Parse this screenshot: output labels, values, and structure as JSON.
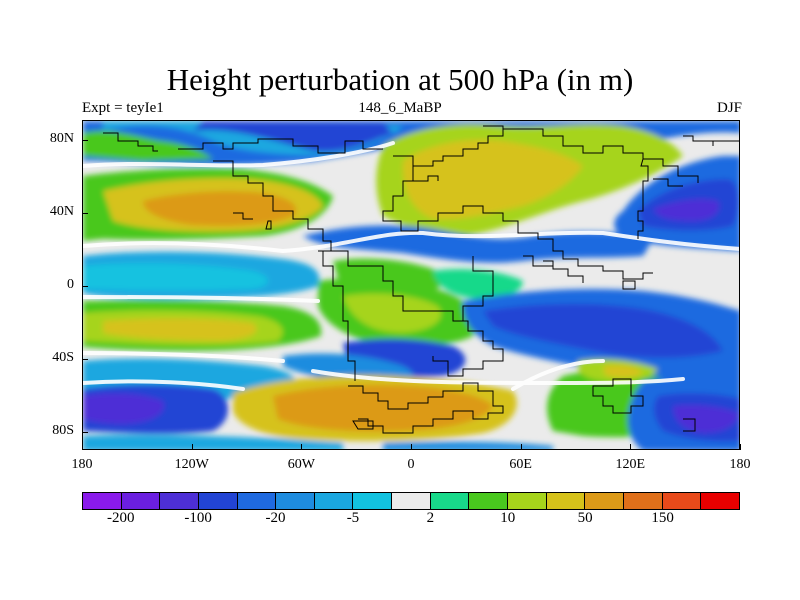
{
  "title": "Height perturbation at 500 hPa (in m)",
  "subtitle_left": "Expt = teyIe1",
  "subtitle_center": "148_6_MaBP",
  "subtitle_right": "DJF",
  "lat_labels": [
    "80N",
    "40N",
    "0",
    "40S",
    "80S"
  ],
  "lon_labels": [
    "180",
    "120W",
    "60W",
    "0",
    "60E",
    "120E",
    "180"
  ],
  "colorbar": {
    "colors": [
      "#8a1aeb",
      "#6b1fe0",
      "#4d2fd6",
      "#2244d4",
      "#1f6ae0",
      "#1e8cdf",
      "#1aa7e0",
      "#12c2e0",
      "#ebebeb",
      "#18d98a",
      "#49c81e",
      "#a6d41b",
      "#d6c21a",
      "#dc9a18",
      "#e0701a",
      "#e84a1a",
      "#e80000"
    ],
    "labels": [
      "-200",
      "-100",
      "-20",
      "-5",
      "2",
      "10",
      "50",
      "150"
    ]
  },
  "colors": {
    "purple": "#4d2fd6",
    "blue_dark": "#2244d4",
    "blue": "#1f6ae0",
    "blue_light": "#1e8cdf",
    "cyan": "#12c2e0",
    "white": "#ebebeb",
    "teal": "#18d98a",
    "green": "#49c81e",
    "lime": "#a6d41b",
    "yellow": "#d6c21a",
    "orange": "#dc9a18"
  }
}
